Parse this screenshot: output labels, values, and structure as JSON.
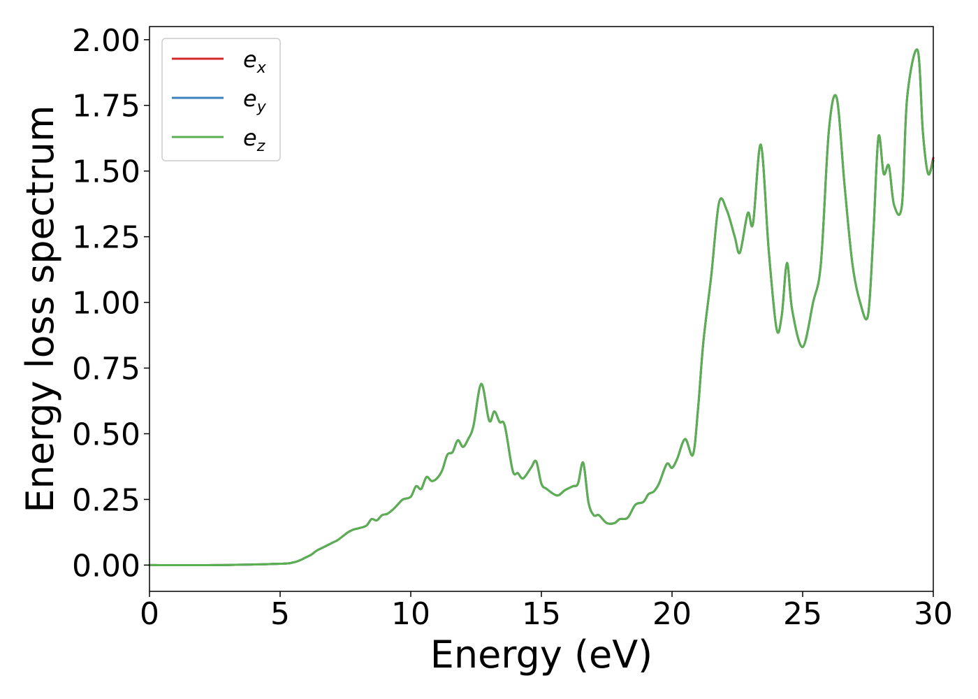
{
  "chart_data": {
    "type": "line",
    "xlabel": "Energy (eV)",
    "ylabel": "Energy loss spectrum",
    "xlim": [
      0,
      30
    ],
    "ylim": [
      -0.1,
      2.05
    ],
    "xticks": [
      "0",
      "5",
      "10",
      "15",
      "20",
      "25",
      "30"
    ],
    "yticks": [
      "0.00",
      "0.25",
      "0.50",
      "0.75",
      "1.00",
      "1.25",
      "1.50",
      "1.75",
      "2.00"
    ],
    "grid": false,
    "legend_position": "top-left",
    "x": [
      0,
      2.5,
      5.0,
      5.5,
      5.8,
      6.0,
      6.2,
      6.4,
      6.6,
      6.8,
      7.0,
      7.2,
      7.4,
      7.6,
      7.8,
      8.0,
      8.3,
      8.5,
      8.7,
      8.9,
      9.1,
      9.3,
      9.5,
      9.7,
      10.0,
      10.2,
      10.4,
      10.6,
      10.8,
      11.0,
      11.2,
      11.4,
      11.6,
      11.8,
      12.0,
      12.2,
      12.4,
      12.7,
      13.0,
      13.2,
      13.4,
      13.6,
      13.9,
      14.1,
      14.3,
      14.6,
      14.8,
      15.0,
      15.2,
      15.6,
      15.9,
      16.2,
      16.4,
      16.6,
      16.8,
      17.0,
      17.2,
      17.5,
      17.8,
      18.0,
      18.3,
      18.6,
      18.9,
      19.1,
      19.3,
      19.5,
      19.8,
      20.0,
      20.2,
      20.5,
      20.8,
      21.0,
      21.2,
      21.5,
      21.8,
      22.1,
      22.4,
      22.6,
      22.9,
      23.1,
      23.4,
      23.7,
      24.0,
      24.2,
      24.4,
      24.6,
      25.0,
      25.4,
      25.7,
      26.0,
      26.3,
      26.6,
      26.9,
      27.2,
      27.5,
      27.7,
      27.9,
      28.1,
      28.3,
      28.5,
      28.8,
      29.0,
      29.4,
      29.6,
      29.8,
      30.0
    ],
    "series": [
      {
        "name": "x",
        "color": "#d62728",
        "y": [
          0.0,
          0.0,
          0.005,
          0.01,
          0.02,
          0.03,
          0.04,
          0.055,
          0.065,
          0.075,
          0.085,
          0.095,
          0.11,
          0.125,
          0.135,
          0.14,
          0.15,
          0.175,
          0.17,
          0.19,
          0.195,
          0.21,
          0.23,
          0.25,
          0.26,
          0.3,
          0.29,
          0.335,
          0.32,
          0.33,
          0.36,
          0.42,
          0.43,
          0.475,
          0.45,
          0.48,
          0.53,
          0.69,
          0.55,
          0.585,
          0.545,
          0.53,
          0.36,
          0.35,
          0.33,
          0.37,
          0.395,
          0.31,
          0.29,
          0.265,
          0.285,
          0.3,
          0.31,
          0.39,
          0.24,
          0.19,
          0.19,
          0.16,
          0.16,
          0.175,
          0.18,
          0.23,
          0.24,
          0.27,
          0.28,
          0.31,
          0.385,
          0.37,
          0.405,
          0.48,
          0.42,
          0.6,
          0.85,
          1.1,
          1.38,
          1.35,
          1.25,
          1.19,
          1.34,
          1.3,
          1.6,
          1.2,
          0.9,
          0.95,
          1.15,
          0.97,
          0.83,
          1.0,
          1.15,
          1.65,
          1.78,
          1.45,
          1.15,
          1.0,
          0.95,
          1.25,
          1.63,
          1.49,
          1.52,
          1.37,
          1.37,
          1.78,
          1.96,
          1.65,
          1.49,
          1.55
        ]
      },
      {
        "name": "y",
        "color": "#3a7fbf",
        "y": [
          0.0,
          0.0,
          0.005,
          0.01,
          0.02,
          0.03,
          0.04,
          0.055,
          0.065,
          0.075,
          0.085,
          0.095,
          0.11,
          0.125,
          0.135,
          0.14,
          0.15,
          0.175,
          0.17,
          0.19,
          0.195,
          0.21,
          0.23,
          0.25,
          0.26,
          0.3,
          0.29,
          0.335,
          0.32,
          0.33,
          0.36,
          0.42,
          0.43,
          0.475,
          0.45,
          0.48,
          0.53,
          0.69,
          0.55,
          0.585,
          0.545,
          0.53,
          0.36,
          0.35,
          0.33,
          0.37,
          0.395,
          0.31,
          0.29,
          0.265,
          0.285,
          0.3,
          0.31,
          0.39,
          0.24,
          0.19,
          0.19,
          0.16,
          0.16,
          0.175,
          0.18,
          0.23,
          0.24,
          0.27,
          0.28,
          0.31,
          0.385,
          0.37,
          0.405,
          0.48,
          0.42,
          0.6,
          0.85,
          1.1,
          1.38,
          1.35,
          1.25,
          1.19,
          1.34,
          1.3,
          1.6,
          1.2,
          0.9,
          0.95,
          1.15,
          0.97,
          0.83,
          1.0,
          1.15,
          1.65,
          1.78,
          1.45,
          1.15,
          1.0,
          0.95,
          1.25,
          1.63,
          1.49,
          1.52,
          1.37,
          1.37,
          1.78,
          1.96,
          1.65,
          1.49,
          1.54
        ]
      },
      {
        "name": "z",
        "color": "#5aaf50",
        "y": [
          0.0,
          0.0,
          0.005,
          0.01,
          0.02,
          0.03,
          0.04,
          0.055,
          0.065,
          0.075,
          0.085,
          0.095,
          0.11,
          0.125,
          0.135,
          0.14,
          0.15,
          0.175,
          0.17,
          0.19,
          0.195,
          0.21,
          0.23,
          0.25,
          0.26,
          0.3,
          0.29,
          0.335,
          0.32,
          0.33,
          0.36,
          0.42,
          0.43,
          0.475,
          0.45,
          0.48,
          0.53,
          0.69,
          0.55,
          0.585,
          0.545,
          0.53,
          0.36,
          0.35,
          0.33,
          0.37,
          0.395,
          0.31,
          0.29,
          0.265,
          0.285,
          0.3,
          0.31,
          0.39,
          0.24,
          0.19,
          0.19,
          0.16,
          0.16,
          0.175,
          0.18,
          0.23,
          0.24,
          0.27,
          0.28,
          0.31,
          0.385,
          0.37,
          0.405,
          0.48,
          0.42,
          0.6,
          0.85,
          1.1,
          1.38,
          1.35,
          1.25,
          1.19,
          1.34,
          1.3,
          1.6,
          1.2,
          0.9,
          0.95,
          1.15,
          0.97,
          0.83,
          1.0,
          1.15,
          1.65,
          1.78,
          1.45,
          1.15,
          1.0,
          0.95,
          1.25,
          1.63,
          1.49,
          1.52,
          1.37,
          1.37,
          1.78,
          1.96,
          1.65,
          1.49,
          1.54
        ]
      }
    ],
    "legend": [
      {
        "base": "e",
        "sub": "x",
        "color": "#d62728"
      },
      {
        "base": "e",
        "sub": "y",
        "color": "#3a7fbf"
      },
      {
        "base": "e",
        "sub": "z",
        "color": "#5aaf50"
      }
    ]
  }
}
